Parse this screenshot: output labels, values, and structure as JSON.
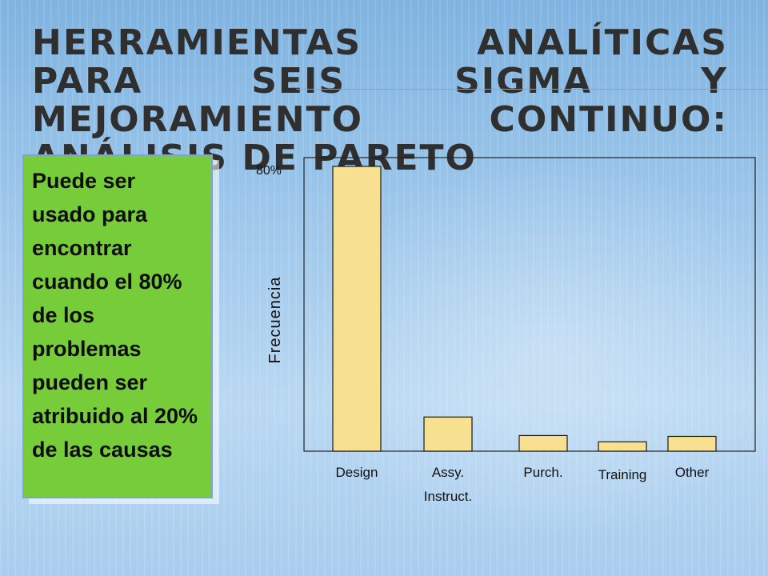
{
  "slide": {
    "title": "Herramientas analíticas para seis sigma y mejoramiento continuo: análisis de Pareto",
    "note_text": "Puede ser usado para encontrar cuando el 80% de los problemas pueden ser atribuido al 20% de las causas"
  },
  "colors": {
    "note_background": "#77cc3a",
    "bar_fill": "#f7e08f",
    "title_rule": "#7ac143"
  },
  "chart_data": {
    "type": "bar",
    "title": "",
    "ylabel": "Frecuencia",
    "xlabel": "",
    "y_tick_label": "80%",
    "categories": [
      [
        "Design"
      ],
      [
        "Assy.",
        "Instruct."
      ],
      [
        "Purch."
      ],
      [
        "Training"
      ],
      [
        "Other"
      ]
    ],
    "values": [
      100,
      12,
      5.5,
      3.3,
      5.2
    ],
    "ylim": [
      0,
      100
    ],
    "grid": false,
    "legend": "none"
  }
}
